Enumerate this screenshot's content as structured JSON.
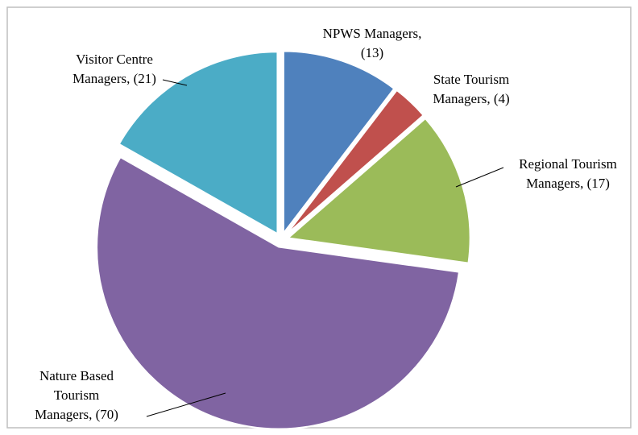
{
  "chart_data": {
    "type": "pie",
    "labels": [
      [
        "NPWS Managers,",
        "(13)"
      ],
      [
        "State Tourism",
        "Managers, (4)"
      ],
      [
        "Regional Tourism",
        "Managers, (17)"
      ],
      [
        "Nature Based",
        "Tourism",
        "Managers, (70)"
      ],
      [
        "Visitor Centre",
        "Managers, (21)"
      ]
    ],
    "values": [
      13,
      4,
      17,
      70,
      21
    ],
    "colors": [
      "#4f81bd",
      "#c0504d",
      "#9bbb59",
      "#8064a2",
      "#4bacc6"
    ]
  }
}
